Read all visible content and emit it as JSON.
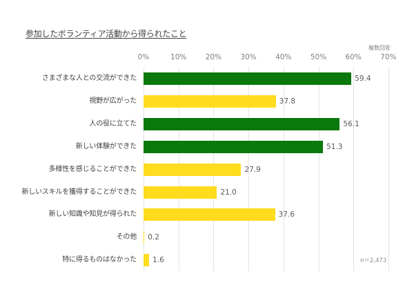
{
  "chart_data": {
    "type": "bar",
    "orientation": "horizontal",
    "title": "参加したボランティア活動から得られたこと",
    "subtitle": "複数回答",
    "xlabel": "",
    "ylabel": "",
    "xlim": [
      0,
      70
    ],
    "x_ticks": [
      "0%",
      "10%",
      "20%",
      "30%",
      "40%",
      "50%",
      "60%",
      "70%"
    ],
    "x_tick_position": "top",
    "grid": true,
    "legend": null,
    "categories": [
      "さまざまな人との交流ができた",
      "視野が広がった",
      "人の役に立てた",
      "新しい体験ができた",
      "多様性を感じることができた",
      "新しいスキルを獲得することができた",
      "新しい知識や知見が得られた",
      "その他",
      "特に得るものはなかった"
    ],
    "values": [
      59.4,
      37.8,
      56.1,
      51.3,
      27.9,
      21.0,
      37.6,
      0.2,
      1.6
    ],
    "value_labels": [
      "59.4",
      "37.8",
      "56.1",
      "51.3",
      "27.9",
      "21.0",
      "37.6",
      "0.2",
      "1.6"
    ],
    "bar_colors": [
      "#0a780a",
      "#ffdc1e",
      "#0a780a",
      "#0a780a",
      "#ffdc1e",
      "#ffdc1e",
      "#ffdc1e",
      "#ffdc1e",
      "#ffdc1e"
    ],
    "highlight_color": "#0a780a",
    "base_color": "#ffdc1e",
    "annotations": [
      "n＝2,473",
      "複数回答"
    ]
  },
  "header": {
    "title": "参加したボランティア活動から得られたこと",
    "note": "複数回答"
  },
  "footer": {
    "sample_size": "n＝2,473"
  }
}
